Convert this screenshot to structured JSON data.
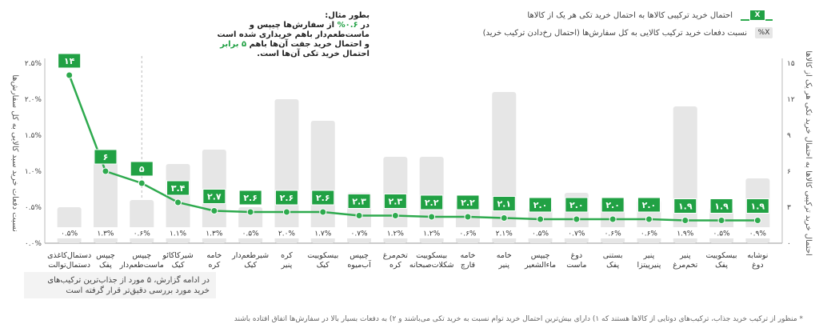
{
  "legend": {
    "line_swatch": "X",
    "line_label": "احتمال خرید ترکیبی کالاها به  احتمال خرید تکی هر یک از کالاها",
    "bar_swatch": "X%",
    "bar_label": "نسبت دفعات خرید ترکیب کالایی به کل سفارش‌ها (احتمال رخ‌دادن ترکیب خرید)"
  },
  "note": {
    "heading": "بطور مثال:",
    "p1": "در",
    "hl1": "۰.۶%",
    "p2": "از سفارش‌ها چیپس و ماست‌طعم‌دار باهم خریداری شده است و احتمال خرید جفت آن‌ها باهم",
    "hl2": "۵ برابر",
    "p3": "احتمال خرید تکی آن‌ها است."
  },
  "bottom_note": "در ادامه گزارش، ۵ مورد از جذاب‌ترین ترکیب‌های خرید مورد بررسی دقیق‌تر قرار گرفته است",
  "footnote": "* منظور از ترکیب خرید جذاب، ترکیب‌های دوتایی از کالاها هستند که ۱) دارای بیش‌ترین احتمال خرید توام نسبت به خرید تکی می‌باشند و ۲) به دفعات بسیار بالا در سفارش‌ها اتفاق افتاده باشند",
  "colors": {
    "bar": "#e6e6e6",
    "line": "#2eaa4e",
    "label_box": "#21a144"
  },
  "chart_data": {
    "type": "bar",
    "title": "",
    "ylabel_left": "نسبت دفعات خرید سبد کالایی به کل سفارش‌ها",
    "ylabel_right": "احتمال خرید ترکیبی کالاها به احتمال خرید تکی هر یک از کالاها",
    "ylim_left": [
      0,
      2.5
    ],
    "ylim_right": [
      0,
      15
    ],
    "y_ticks_left": [
      "۰.۰%",
      "۰.۵%",
      "۱.۰%",
      "۱.۵%",
      "۲.۰%",
      "۲.۵%"
    ],
    "y_ticks_right": [
      "۰",
      "۳",
      "۶",
      "۹",
      "۱۲",
      "۱۵"
    ],
    "categories": [
      [
        "دستمال‌کاغذی",
        "دستمال‌توالت"
      ],
      [
        "چیپس",
        "پفک"
      ],
      [
        "چیپس",
        "ماست‌طعم‌دار"
      ],
      [
        "شیرکاکائو",
        "کیک"
      ],
      [
        "خامه",
        "کره"
      ],
      [
        "شیرطعم‌دار",
        "کیک"
      ],
      [
        "کره",
        "پنیر"
      ],
      [
        "بیسکوییت",
        "کیک"
      ],
      [
        "چیپس",
        "آب‌میوه"
      ],
      [
        "تخم‌مرغ",
        "کره"
      ],
      [
        "بیسکوییت",
        "شکلات‌صبحانه"
      ],
      [
        "خامه",
        "قارچ"
      ],
      [
        "خامه",
        "پنیر"
      ],
      [
        "چیپس",
        "ماءالشعیر"
      ],
      [
        "دوغ",
        "ماست"
      ],
      [
        "بستنی",
        "پفک"
      ],
      [
        "پنیر",
        "پنیرپیتزا"
      ],
      [
        "پنیر",
        "تخم‌مرغ"
      ],
      [
        "بیسکوییت",
        "پفک"
      ],
      [
        "نوشابه",
        "دوغ"
      ]
    ],
    "series": [
      {
        "type": "bar",
        "values": [
          0.5,
          1.3,
          0.6,
          1.1,
          1.3,
          0.5,
          2.0,
          1.7,
          0.7,
          1.2,
          1.2,
          0.6,
          2.1,
          0.5,
          0.7,
          0.6,
          0.6,
          1.9,
          0.5,
          0.9
        ],
        "labels": [
          "۰.۵%",
          "۱.۳%",
          "۰.۶%",
          "۱.۱%",
          "۱.۳%",
          "۰.۵%",
          "۲.۰%",
          "۱.۷%",
          "۰.۷%",
          "۱.۲%",
          "۱.۲%",
          "۰.۶%",
          "۲.۱%",
          "۰.۵%",
          "۰.۷%",
          "۰.۶%",
          "۰.۶%",
          "۱.۹%",
          "۰.۵%",
          "۰.۹%"
        ]
      },
      {
        "type": "line",
        "values": [
          14,
          6,
          5,
          3.4,
          2.7,
          2.6,
          2.6,
          2.6,
          2.3,
          2.3,
          2.2,
          2.2,
          2.1,
          2.0,
          2.0,
          2.0,
          2.0,
          1.9,
          1.9,
          1.9
        ],
        "labels": [
          "۱۴",
          "۶",
          "۵",
          "۳.۴",
          "۲.۷",
          "۲.۶",
          "۲.۶",
          "۲.۶",
          "۲.۳",
          "۲.۳",
          "۲.۲",
          "۲.۲",
          "۲.۱",
          "۲.۰",
          "۲.۰",
          "۲.۰",
          "۲.۰",
          "۱.۹",
          "۱.۹",
          "۱.۹"
        ]
      }
    ]
  }
}
